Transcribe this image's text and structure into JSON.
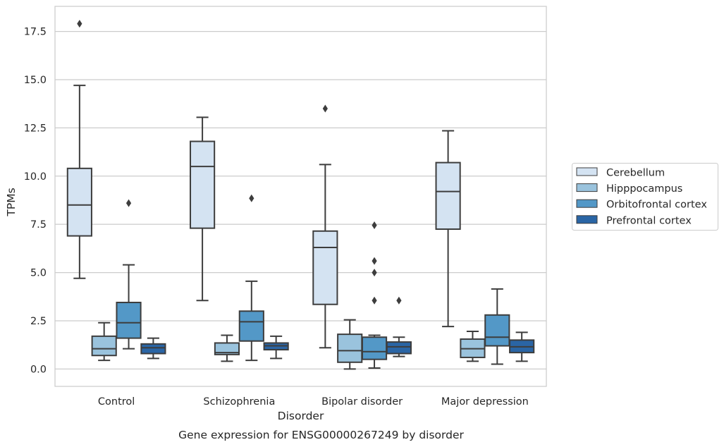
{
  "chart_data": {
    "type": "box",
    "title": "Gene expression for ENSG00000267249 by disorder",
    "xlabel": "Disorder",
    "ylabel": "TPMs",
    "categories": [
      "Control",
      "Schizophrenia",
      "Bipolar disorder",
      "Major depression"
    ],
    "ylim": [
      -0.9,
      18.8
    ],
    "yticks": [
      0.0,
      2.5,
      5.0,
      7.5,
      10.0,
      12.5,
      15.0,
      17.5
    ],
    "ytick_labels": [
      "0.0",
      "2.5",
      "5.0",
      "7.5",
      "10.0",
      "12.5",
      "15.0",
      "17.5"
    ],
    "grid": "horizontal",
    "legend_position": "right",
    "series": [
      {
        "name": "Cerebellum",
        "color": "#d4e3f2",
        "boxes": [
          {
            "whisker_low": 4.7,
            "q1": 6.9,
            "median": 8.5,
            "q3": 10.4,
            "whisker_high": 14.7,
            "outliers": [
              17.9
            ]
          },
          {
            "whisker_low": 3.55,
            "q1": 7.3,
            "median": 10.5,
            "q3": 11.8,
            "whisker_high": 13.05,
            "outliers": []
          },
          {
            "whisker_low": 1.1,
            "q1": 3.35,
            "median": 6.3,
            "q3": 7.15,
            "whisker_high": 10.6,
            "outliers": [
              13.5
            ]
          },
          {
            "whisker_low": 2.2,
            "q1": 7.25,
            "median": 9.2,
            "q3": 10.7,
            "whisker_high": 12.35,
            "outliers": []
          }
        ]
      },
      {
        "name": "Hipppocampus",
        "color": "#9ac3dd",
        "boxes": [
          {
            "whisker_low": 0.45,
            "q1": 0.7,
            "median": 1.05,
            "q3": 1.7,
            "whisker_high": 2.4,
            "outliers": []
          },
          {
            "whisker_low": 0.4,
            "q1": 0.75,
            "median": 0.85,
            "q3": 1.35,
            "whisker_high": 1.75,
            "outliers": []
          },
          {
            "whisker_low": 0.0,
            "q1": 0.35,
            "median": 0.95,
            "q3": 1.8,
            "whisker_high": 2.55,
            "outliers": []
          },
          {
            "whisker_low": 0.4,
            "q1": 0.6,
            "median": 1.05,
            "q3": 1.55,
            "whisker_high": 1.95,
            "outliers": []
          }
        ]
      },
      {
        "name": "Orbitofrontal cortex",
        "color": "#5398c7",
        "boxes": [
          {
            "whisker_low": 1.05,
            "q1": 1.6,
            "median": 2.4,
            "q3": 3.45,
            "whisker_high": 5.4,
            "outliers": [
              8.6
            ]
          },
          {
            "whisker_low": 0.45,
            "q1": 1.45,
            "median": 2.45,
            "q3": 3.0,
            "whisker_high": 4.55,
            "outliers": [
              8.85
            ]
          },
          {
            "whisker_low": 0.05,
            "q1": 0.5,
            "median": 0.9,
            "q3": 1.65,
            "whisker_high": 1.75,
            "outliers": [
              3.55,
              5.0,
              5.6,
              7.45
            ]
          },
          {
            "whisker_low": 0.25,
            "q1": 1.2,
            "median": 1.65,
            "q3": 2.8,
            "whisker_high": 4.15,
            "outliers": []
          }
        ]
      },
      {
        "name": "Prefrontal cortex",
        "color": "#2a65a5",
        "boxes": [
          {
            "whisker_low": 0.55,
            "q1": 0.8,
            "median": 1.1,
            "q3": 1.3,
            "whisker_high": 1.6,
            "outliers": []
          },
          {
            "whisker_low": 0.55,
            "q1": 1.0,
            "median": 1.2,
            "q3": 1.35,
            "whisker_high": 1.7,
            "outliers": []
          },
          {
            "whisker_low": 0.65,
            "q1": 0.8,
            "median": 1.15,
            "q3": 1.4,
            "whisker_high": 1.65,
            "outliers": [
              3.55
            ]
          },
          {
            "whisker_low": 0.4,
            "q1": 0.85,
            "median": 1.15,
            "q3": 1.5,
            "whisker_high": 1.9,
            "outliers": []
          }
        ]
      }
    ]
  }
}
